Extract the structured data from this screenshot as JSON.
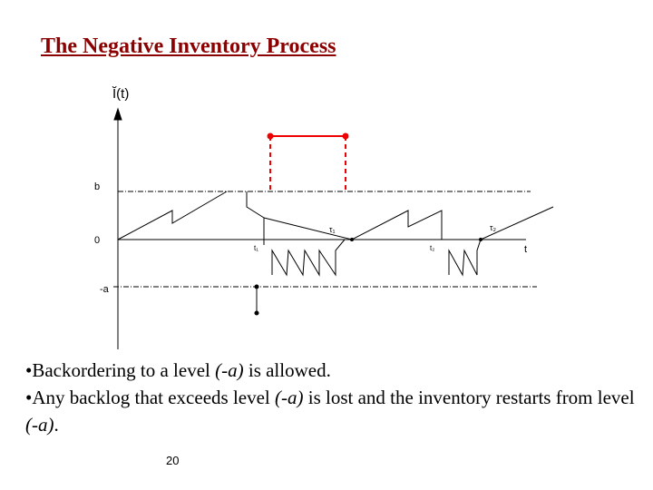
{
  "title": "The Negative Inventory Process",
  "diagram": {
    "y_label": "Ĭ(t)",
    "x_label": "t",
    "level_b": "b",
    "level_zero": "0",
    "level_neg_a": "-a",
    "tau_1": "τ₁",
    "tau_2": "τ₂",
    "t_1": "t₁",
    "t_2": "t₂"
  },
  "bullets": [
    {
      "before": "Backordering to a level ",
      "italic": "(-a)",
      "after": " is allowed."
    },
    {
      "before": "Any backlog that exceeds level ",
      "italic": "(-a)",
      "after": " is lost and the inventory restarts from level ",
      "italic2": "(-a)",
      "after2": "."
    }
  ],
  "page_number": "20"
}
